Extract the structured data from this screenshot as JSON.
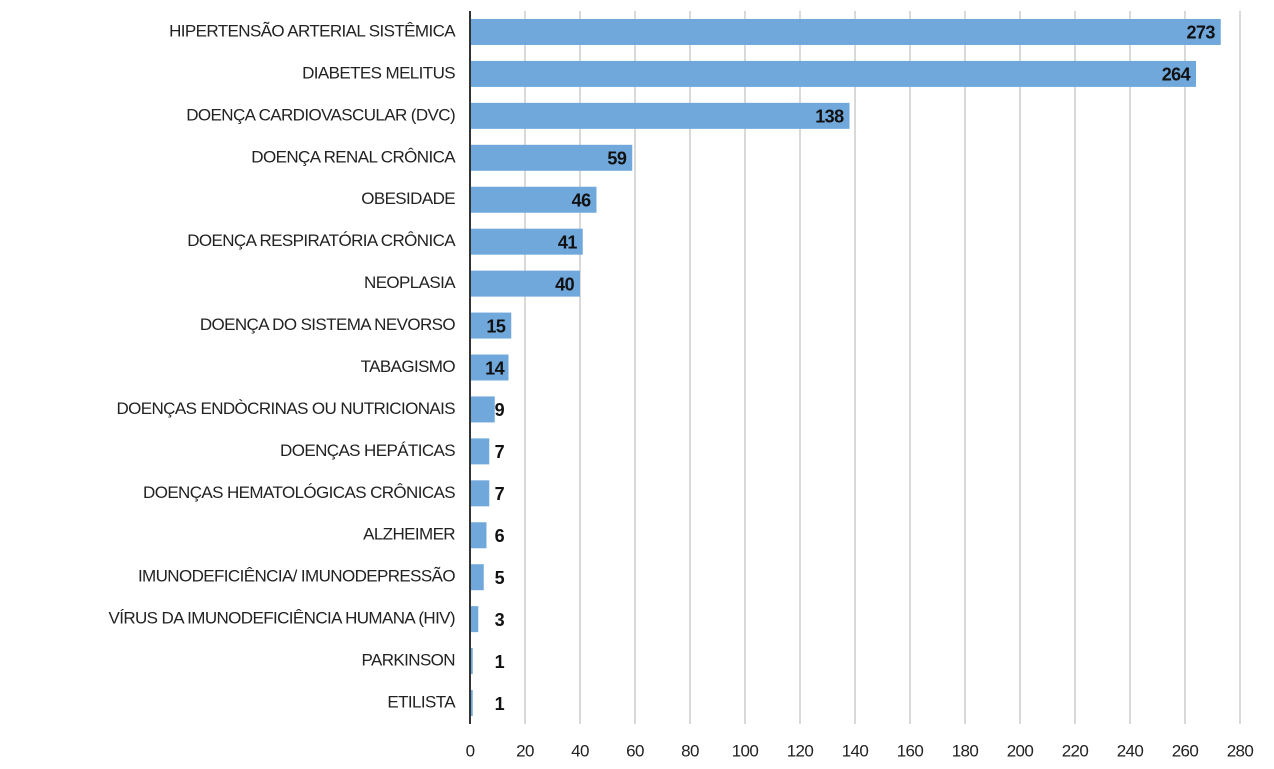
{
  "chart_data": {
    "type": "barh",
    "categories": [
      "HIPERTENSÃO ARTERIAL SISTÊMICA",
      "DIABETES MELITUS",
      "DOENÇA CARDIOVASCULAR (DVC)",
      "DOENÇA RENAL CRÔNICA",
      "OBESIDADE",
      "DOENÇA RESPIRATÓRIA CRÔNICA",
      "NEOPLASIA",
      "DOENÇA DO SISTEMA NEVORSO",
      "TABAGISMO",
      "DOENÇAS ENDÒCRINAS OU NUTRICIONAIS",
      "DOENÇAS HEPÁTICAS",
      "DOENÇAS HEMATOLÓGICAS CRÔNICAS",
      "ALZHEIMER",
      "IMUNODEFICIÊNCIA/ IMUNODEPRESSÃO",
      "VÍRUS DA IMUNODEFICIÊNCIA HUMANA (HIV)",
      "PARKINSON",
      "ETILISTA"
    ],
    "values": [
      273,
      264,
      138,
      59,
      46,
      41,
      40,
      15,
      14,
      9,
      7,
      7,
      6,
      5,
      3,
      1,
      1
    ],
    "color": "#70a8dc",
    "xlim": [
      0,
      280
    ],
    "xticks": [
      0,
      20,
      40,
      60,
      80,
      100,
      120,
      140,
      160,
      180,
      200,
      220,
      240,
      260,
      280
    ],
    "grid": true
  }
}
